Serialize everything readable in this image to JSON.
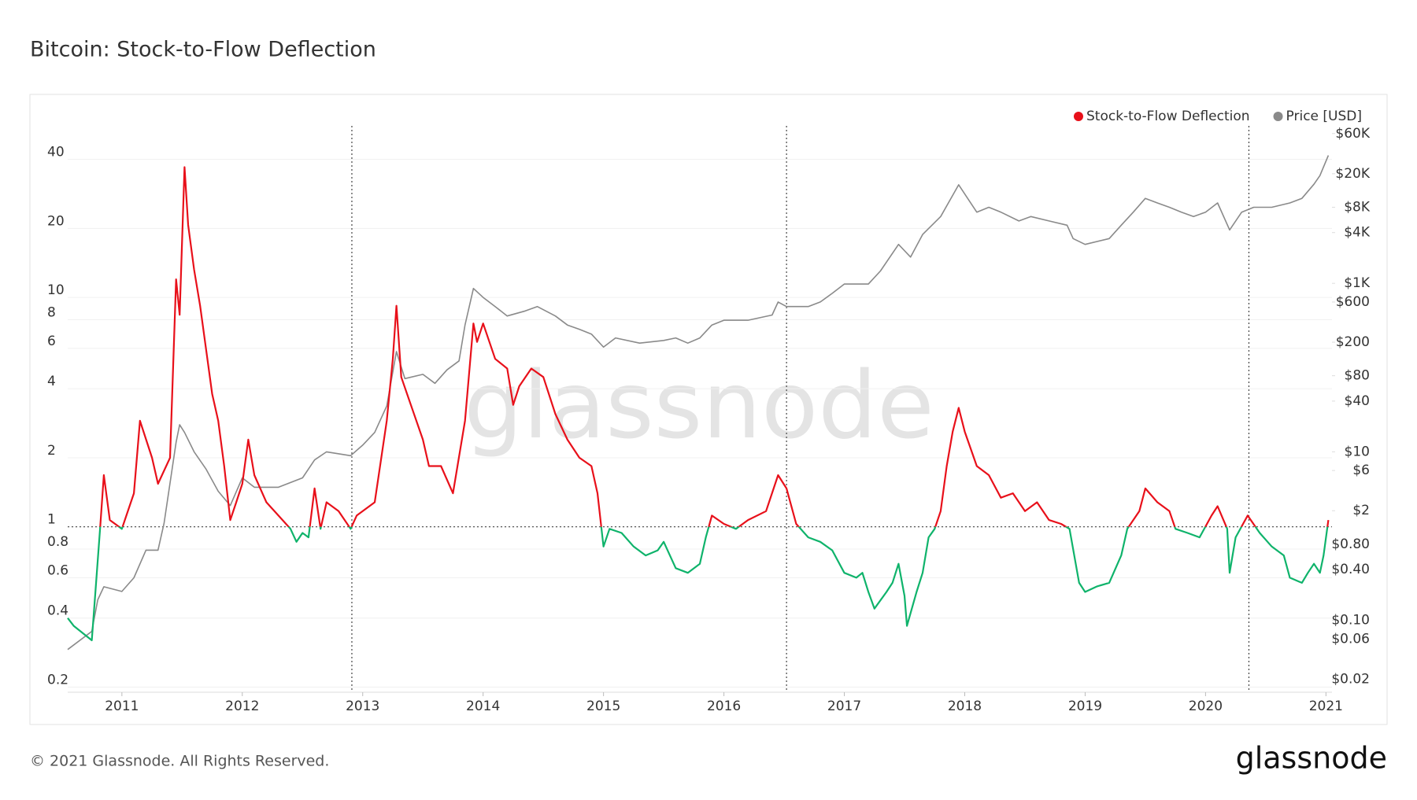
{
  "chart_data": {
    "type": "line",
    "title": "Bitcoin: Stock-to-Flow Deflection",
    "watermark": "glassnode",
    "footer": "© 2021 Glassnode. All Rights Reserved.",
    "logo": "glassnode",
    "xlim": [
      2010.55,
      2021.05
    ],
    "xticks": [
      2011,
      2012,
      2013,
      2014,
      2015,
      2016,
      2017,
      2018,
      2019,
      2020,
      2021
    ],
    "ylim": [
      0.19,
      56
    ],
    "ylog": true,
    "yticks": [
      0.2,
      0.4,
      0.6,
      0.8,
      1,
      2,
      4,
      6,
      8,
      10,
      20,
      40
    ],
    "y2lim": [
      0.014,
      74000
    ],
    "y2log": true,
    "y2ticks": [
      {
        "value": 0.02,
        "label": "$0.02"
      },
      {
        "value": 0.06,
        "label": "$0.06"
      },
      {
        "value": 0.1,
        "label": "$0.10"
      },
      {
        "value": 0.4,
        "label": "$0.40"
      },
      {
        "value": 0.8,
        "label": "$0.80"
      },
      {
        "value": 2,
        "label": "$2"
      },
      {
        "value": 6,
        "label": "$6"
      },
      {
        "value": 10,
        "label": "$10"
      },
      {
        "value": 40,
        "label": "$40"
      },
      {
        "value": 80,
        "label": "$80"
      },
      {
        "value": 200,
        "label": "$200"
      },
      {
        "value": 600,
        "label": "$600"
      },
      {
        "value": 1000,
        "label": "$1K"
      },
      {
        "value": 4000,
        "label": "$4K"
      },
      {
        "value": 8000,
        "label": "$8K"
      },
      {
        "value": 20000,
        "label": "$20K"
      },
      {
        "value": 60000,
        "label": "$60K"
      }
    ],
    "grid": true,
    "reference_line": 1,
    "vertical_lines": [
      2012.91,
      2016.52,
      2020.36
    ],
    "legend": "top-right",
    "series": [
      {
        "name": "Stock-to-Flow Deflection",
        "color": "#e8101a",
        "below_color": "#0fb36b",
        "x": [
          2010.55,
          2010.6,
          2010.75,
          2010.78,
          2010.82,
          2010.85,
          2010.9,
          2011.0,
          2011.1,
          2011.15,
          2011.25,
          2011.3,
          2011.4,
          2011.45,
          2011.48,
          2011.52,
          2011.55,
          2011.6,
          2011.65,
          2011.7,
          2011.75,
          2011.8,
          2011.85,
          2011.9,
          2011.95,
          2012.0,
          2012.05,
          2012.1,
          2012.2,
          2012.3,
          2012.4,
          2012.45,
          2012.5,
          2012.55,
          2012.6,
          2012.65,
          2012.7,
          2012.8,
          2012.9,
          2012.95,
          2013.1,
          2013.2,
          2013.25,
          2013.28,
          2013.32,
          2013.4,
          2013.5,
          2013.55,
          2013.65,
          2013.75,
          2013.85,
          2013.92,
          2013.95,
          2014.0,
          2014.1,
          2014.2,
          2014.25,
          2014.3,
          2014.4,
          2014.5,
          2014.6,
          2014.7,
          2014.8,
          2014.9,
          2014.95,
          2015.0,
          2015.05,
          2015.15,
          2015.25,
          2015.35,
          2015.45,
          2015.5,
          2015.6,
          2015.7,
          2015.8,
          2015.85,
          2015.9,
          2016.0,
          2016.1,
          2016.2,
          2016.35,
          2016.45,
          2016.52,
          2016.6,
          2016.7,
          2016.8,
          2016.9,
          2017.0,
          2017.1,
          2017.15,
          2017.2,
          2017.25,
          2017.35,
          2017.4,
          2017.45,
          2017.5,
          2017.52,
          2017.6,
          2017.65,
          2017.7,
          2017.75,
          2017.8,
          2017.85,
          2017.9,
          2017.95,
          2018.0,
          2018.1,
          2018.2,
          2018.3,
          2018.4,
          2018.5,
          2018.6,
          2018.7,
          2018.8,
          2018.87,
          2018.95,
          2019.0,
          2019.1,
          2019.2,
          2019.3,
          2019.35,
          2019.45,
          2019.5,
          2019.6,
          2019.7,
          2019.75,
          2019.85,
          2019.95,
          2020.05,
          2020.1,
          2020.18,
          2020.2,
          2020.25,
          2020.35,
          2020.45,
          2020.55,
          2020.65,
          2020.7,
          2020.8,
          2020.85,
          2020.9,
          2020.95,
          2020.98,
          2021.02
        ],
        "values": [
          0.4,
          0.37,
          0.32,
          0.52,
          1.0,
          1.68,
          1.07,
          0.98,
          1.4,
          2.9,
          2.0,
          1.54,
          2.0,
          12,
          8.4,
          37,
          20.7,
          13.2,
          9.2,
          5.9,
          3.8,
          2.9,
          1.84,
          1.07,
          1.28,
          1.54,
          2.4,
          1.68,
          1.28,
          1.12,
          0.98,
          0.86,
          0.94,
          0.9,
          1.47,
          0.98,
          1.28,
          1.17,
          0.98,
          1.12,
          1.28,
          2.9,
          5.4,
          9.2,
          4.5,
          3.4,
          2.4,
          1.84,
          1.84,
          1.4,
          2.9,
          7.7,
          6.4,
          7.7,
          5.4,
          4.9,
          3.4,
          4.1,
          4.9,
          4.5,
          3.1,
          2.4,
          2.0,
          1.84,
          1.4,
          0.82,
          0.98,
          0.94,
          0.82,
          0.75,
          0.79,
          0.86,
          0.66,
          0.63,
          0.69,
          0.9,
          1.12,
          1.03,
          0.98,
          1.07,
          1.17,
          1.68,
          1.47,
          1.03,
          0.9,
          0.86,
          0.79,
          0.63,
          0.6,
          0.63,
          0.52,
          0.44,
          0.52,
          0.57,
          0.69,
          0.5,
          0.37,
          0.52,
          0.63,
          0.9,
          0.98,
          1.17,
          1.84,
          2.6,
          3.3,
          2.6,
          1.84,
          1.68,
          1.34,
          1.4,
          1.17,
          1.28,
          1.07,
          1.03,
          0.98,
          0.57,
          0.52,
          0.55,
          0.57,
          0.75,
          0.98,
          1.17,
          1.47,
          1.28,
          1.17,
          0.98,
          0.94,
          0.9,
          1.12,
          1.23,
          0.98,
          0.63,
          0.9,
          1.12,
          0.94,
          0.82,
          0.75,
          0.6,
          0.57,
          0.63,
          0.69,
          0.63,
          0.75,
          1.07
        ]
      },
      {
        "name": "Price [USD]",
        "color": "#8a8a8a",
        "axis": "y2",
        "x": [
          2010.55,
          2010.75,
          2010.8,
          2010.85,
          2011.0,
          2011.1,
          2011.2,
          2011.3,
          2011.35,
          2011.45,
          2011.48,
          2011.52,
          2011.6,
          2011.7,
          2011.8,
          2011.9,
          2012.0,
          2012.1,
          2012.3,
          2012.5,
          2012.6,
          2012.7,
          2012.9,
          2013.0,
          2013.1,
          2013.2,
          2013.28,
          2013.35,
          2013.5,
          2013.6,
          2013.7,
          2013.8,
          2013.85,
          2013.92,
          2014.0,
          2014.1,
          2014.2,
          2014.35,
          2014.45,
          2014.6,
          2014.7,
          2014.8,
          2014.9,
          2015.0,
          2015.1,
          2015.3,
          2015.5,
          2015.6,
          2015.7,
          2015.8,
          2015.9,
          2016.0,
          2016.2,
          2016.4,
          2016.45,
          2016.52,
          2016.7,
          2016.8,
          2016.9,
          2017.0,
          2017.2,
          2017.3,
          2017.45,
          2017.55,
          2017.65,
          2017.8,
          2017.95,
          2018.0,
          2018.1,
          2018.2,
          2018.3,
          2018.45,
          2018.55,
          2018.7,
          2018.85,
          2018.9,
          2019.0,
          2019.2,
          2019.3,
          2019.4,
          2019.5,
          2019.6,
          2019.7,
          2019.8,
          2019.9,
          2020.0,
          2020.1,
          2020.2,
          2020.3,
          2020.4,
          2020.55,
          2020.7,
          2020.8,
          2020.9,
          2020.95,
          2021.02
        ],
        "values": [
          0.045,
          0.074,
          0.175,
          0.25,
          0.22,
          0.32,
          0.68,
          0.68,
          1.42,
          13,
          21,
          17,
          10,
          6.2,
          3.4,
          2.3,
          4.9,
          3.8,
          3.8,
          4.9,
          8,
          10,
          9,
          12,
          17,
          35,
          155,
          74,
          83,
          65,
          94,
          120,
          320,
          870,
          680,
          530,
          410,
          470,
          530,
          410,
          320,
          285,
          250,
          175,
          225,
          195,
          210,
          225,
          195,
          225,
          320,
          365,
          365,
          420,
          600,
          530,
          530,
          600,
          760,
          980,
          980,
          1400,
          2900,
          2050,
          3800,
          6200,
          14800,
          11500,
          7000,
          8000,
          7000,
          5500,
          6200,
          5500,
          4900,
          3400,
          2900,
          3400,
          4900,
          7000,
          10200,
          9000,
          8000,
          7000,
          6200,
          7000,
          9000,
          4300,
          7000,
          8000,
          8000,
          9000,
          10200,
          15000,
          19000,
          33000
        ]
      }
    ]
  }
}
